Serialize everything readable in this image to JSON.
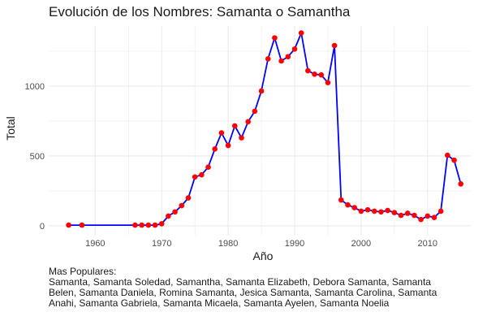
{
  "chart_data": {
    "type": "line",
    "title": "Evolución de los Nombres: Samanta o Samantha",
    "xlabel": "Año",
    "ylabel": "Total",
    "xlim": [
      1953,
      2016.5
    ],
    "ylim": [
      -70,
      1430
    ],
    "x_ticks": [
      1960,
      1970,
      1980,
      1990,
      2000,
      2010
    ],
    "y_ticks": [
      0,
      500,
      1000
    ],
    "grid": true,
    "colors": {
      "line": "#0000ff",
      "points": "#ff0000",
      "grid": "#ebebeb",
      "background": "#ffffff"
    },
    "series": [
      {
        "x": [
          1956,
          1958,
          1966,
          1967,
          1968,
          1969,
          1970,
          1971,
          1972,
          1973,
          1974,
          1975,
          1976,
          1977,
          1978,
          1979,
          1980,
          1981,
          1982,
          1983,
          1984,
          1985,
          1986,
          1987,
          1988,
          1989,
          1990,
          1991,
          1992,
          1993,
          1994,
          1995,
          1996,
          1997,
          1998,
          1999,
          2000,
          2001,
          2002,
          2003,
          2004,
          2005,
          2006,
          2007,
          2008,
          2009,
          2010,
          2011,
          2012,
          2013,
          2014,
          2015
        ],
        "values": [
          5,
          5,
          5,
          5,
          5,
          5,
          15,
          70,
          100,
          145,
          200,
          350,
          365,
          420,
          550,
          665,
          575,
          715,
          630,
          745,
          820,
          965,
          1195,
          1345,
          1180,
          1210,
          1265,
          1380,
          1110,
          1085,
          1080,
          1025,
          1290,
          185,
          150,
          130,
          105,
          115,
          105,
          100,
          110,
          95,
          75,
          90,
          75,
          45,
          70,
          60,
          105,
          505,
          470,
          300
        ]
      }
    ],
    "caption": {
      "heading": "Mas Populares:",
      "text": "Samanta, Samanta Soledad, Samantha, Samanta Elizabeth, Debora Samanta, Samanta Belen, Samanta Daniela, Romina Samanta, Jesica Samanta, Samanta Carolina, Samanta Anahi, Samanta Gabriela, Samanta Micaela, Samanta Ayelen, Samanta Noelia"
    }
  }
}
